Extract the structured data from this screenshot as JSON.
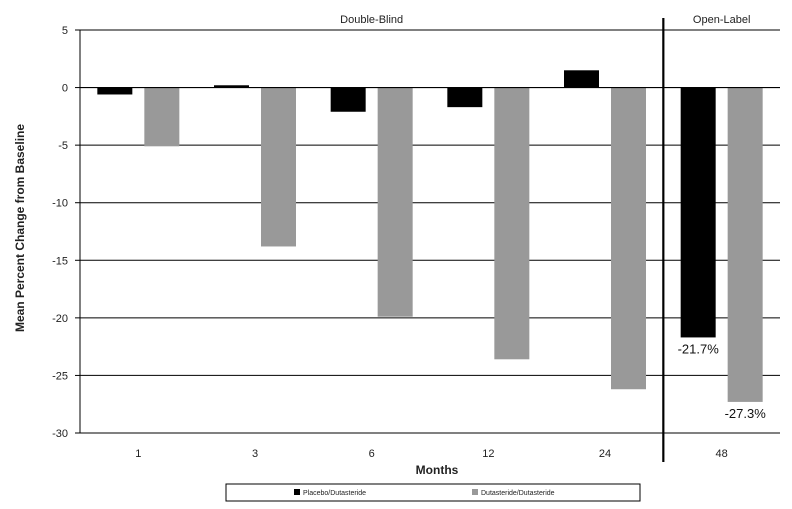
{
  "chart_data": {
    "type": "bar",
    "categories": [
      "1",
      "3",
      "6",
      "12",
      "24",
      "48"
    ],
    "series": [
      {
        "name": "Placebo/Dutasteride",
        "color": "#000000",
        "values": [
          -0.6,
          0.2,
          -2.1,
          -1.7,
          1.5,
          -21.7
        ]
      },
      {
        "name": "Dutasteride/Dutasteride",
        "color": "#999999",
        "values": [
          -5.1,
          -13.8,
          -19.9,
          -23.6,
          -26.2,
          -27.3
        ]
      }
    ],
    "xlabel": "Months",
    "ylabel": "Mean Percent Change from Baseline",
    "ylim": [
      -30,
      5
    ],
    "yticks": [
      5,
      0,
      -5,
      -10,
      -15,
      -20,
      -25,
      -30
    ],
    "grid": true,
    "legend_position": "bottom",
    "sections": [
      {
        "label": "Double-Blind",
        "categories": [
          "1",
          "3",
          "6",
          "12",
          "24"
        ]
      },
      {
        "label": "Open-Label",
        "categories": [
          "48"
        ]
      }
    ],
    "annotations": [
      {
        "text": "-21.7%",
        "series": 0,
        "category": "48"
      },
      {
        "text": "-27.3%",
        "series": 1,
        "category": "48"
      }
    ]
  }
}
